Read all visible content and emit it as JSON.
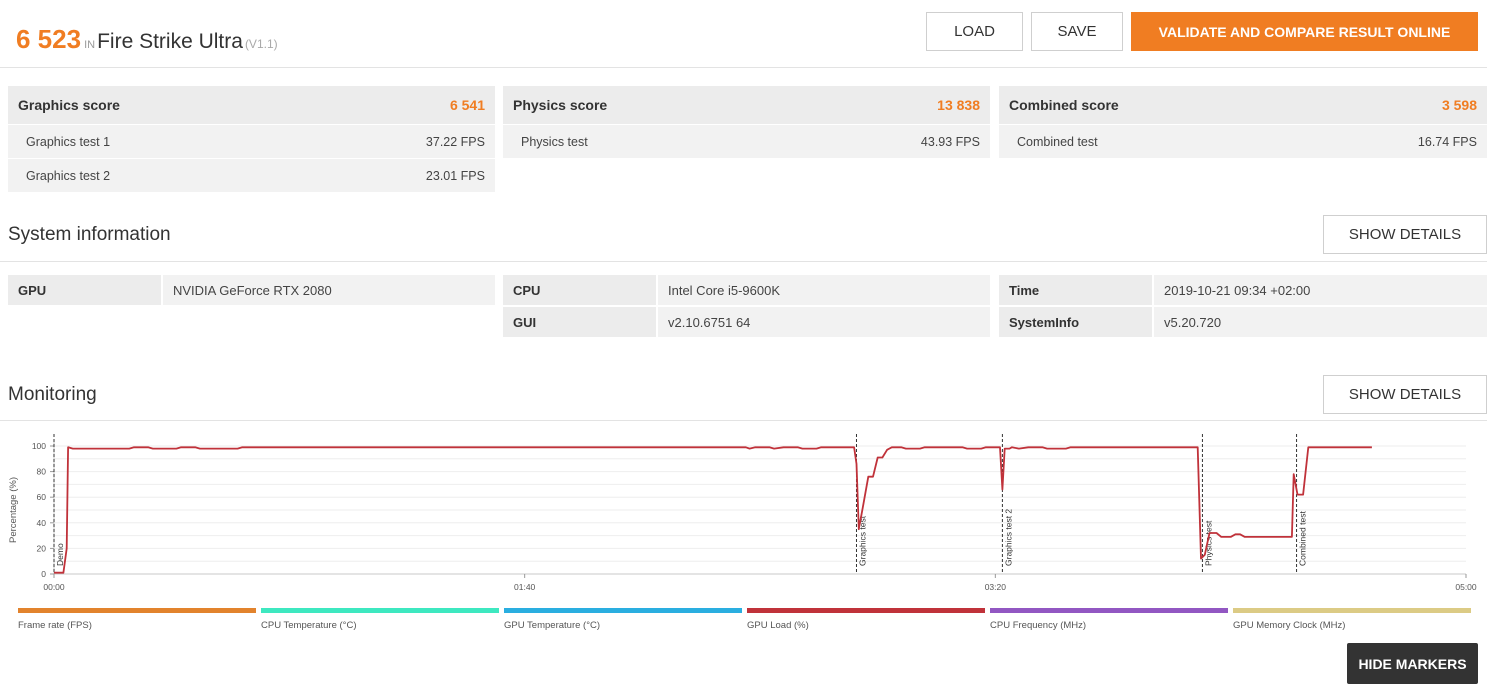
{
  "header": {
    "score": "6 523",
    "in_label": "IN",
    "test_name": "Fire Strike Ultra",
    "version": "(V1.1)",
    "load_label": "LOAD",
    "save_label": "SAVE",
    "validate_label": "VALIDATE AND COMPARE RESULT ONLINE"
  },
  "scores": [
    {
      "title": "Graphics score",
      "value": "6 541",
      "rows": [
        {
          "label": "Graphics test 1",
          "value": "37.22 FPS"
        },
        {
          "label": "Graphics test 2",
          "value": "23.01 FPS"
        }
      ]
    },
    {
      "title": "Physics score",
      "value": "13 838",
      "rows": [
        {
          "label": "Physics test",
          "value": "43.93 FPS"
        }
      ]
    },
    {
      "title": "Combined score",
      "value": "3 598",
      "rows": [
        {
          "label": "Combined test",
          "value": "16.74 FPS"
        }
      ]
    }
  ],
  "system": {
    "title": "System information",
    "details_label": "SHOW DETAILS",
    "gpu_key": "GPU",
    "gpu_val": "NVIDIA GeForce RTX 2080",
    "cpu_key": "CPU",
    "cpu_val": "Intel Core i5-9600K",
    "gui_key": "GUI",
    "gui_val": "v2.10.6751 64",
    "time_key": "Time",
    "time_val": "2019-10-21 09:34 +02:00",
    "sysinfo_key": "SystemInfo",
    "sysinfo_val": "v5.20.720"
  },
  "monitoring": {
    "title": "Monitoring",
    "details_label": "SHOW DETAILS",
    "hide_markers_label": "HIDE MARKERS",
    "legend": [
      {
        "label": "Frame rate (FPS)",
        "color": "#e2832d"
      },
      {
        "label": "CPU Temperature (°C)",
        "color": "#3ee8c0"
      },
      {
        "label": "GPU Temperature (°C)",
        "color": "#2aaee0"
      },
      {
        "label": "GPU Load (%)",
        "color": "#c0323a"
      },
      {
        "label": "CPU Frequency (MHz)",
        "color": "#9257c2"
      },
      {
        "label": "GPU Memory Clock (MHz)",
        "color": "#dccb85"
      }
    ]
  },
  "chart_data": {
    "type": "line",
    "ylabel": "Percentage (%)",
    "ylim": [
      0,
      100
    ],
    "yticks": [
      0,
      20,
      40,
      60,
      80,
      100
    ],
    "xlim_seconds": [
      0,
      300
    ],
    "xticks": [
      {
        "t": 0,
        "label": "00:00"
      },
      {
        "t": 100,
        "label": "01:40"
      },
      {
        "t": 200,
        "label": "03:20"
      },
      {
        "t": 300,
        "label": "05:00"
      }
    ],
    "markers": [
      {
        "t": 0,
        "label": "Demo"
      },
      {
        "t": 170.5,
        "label": "Graphics test"
      },
      {
        "t": 201.5,
        "label": "Graphics test 2"
      },
      {
        "t": 244,
        "label": "Physics test"
      },
      {
        "t": 264,
        "label": "Combined test"
      }
    ],
    "series": [
      {
        "name": "GPU Load (%)",
        "color": "#c0323a",
        "points": [
          [
            0,
            1
          ],
          [
            2,
            1
          ],
          [
            2.7,
            20
          ],
          [
            3,
            99
          ],
          [
            4,
            98
          ],
          [
            10,
            98
          ],
          [
            16,
            98
          ],
          [
            17,
            99
          ],
          [
            20,
            99
          ],
          [
            21,
            98
          ],
          [
            26,
            98
          ],
          [
            27,
            99
          ],
          [
            30,
            99
          ],
          [
            31,
            98
          ],
          [
            39,
            98
          ],
          [
            40,
            99
          ],
          [
            140,
            99
          ],
          [
            147,
            99
          ],
          [
            147.8,
            98
          ],
          [
            149,
            99
          ],
          [
            152,
            99
          ],
          [
            153,
            98
          ],
          [
            155,
            99
          ],
          [
            158,
            99
          ],
          [
            159,
            98
          ],
          [
            162,
            98
          ],
          [
            163,
            99
          ],
          [
            170,
            99
          ],
          [
            170.5,
            86
          ],
          [
            171,
            35
          ],
          [
            172,
            55
          ],
          [
            173,
            76
          ],
          [
            174,
            76
          ],
          [
            175,
            91
          ],
          [
            176,
            91
          ],
          [
            177,
            97
          ],
          [
            178,
            99
          ],
          [
            180,
            99
          ],
          [
            181,
            98
          ],
          [
            184,
            98
          ],
          [
            185,
            99
          ],
          [
            193,
            99
          ],
          [
            194,
            98
          ],
          [
            197,
            98
          ],
          [
            198,
            99
          ],
          [
            201,
            99
          ],
          [
            201.5,
            66
          ],
          [
            202,
            98
          ],
          [
            203,
            98
          ],
          [
            203.5,
            99
          ],
          [
            205,
            98
          ],
          [
            207,
            99
          ],
          [
            210,
            99
          ],
          [
            211,
            98
          ],
          [
            215,
            98
          ],
          [
            216,
            99
          ],
          [
            243,
            99
          ],
          [
            243.7,
            12
          ],
          [
            244.5,
            15
          ],
          [
            245.5,
            32
          ],
          [
            247,
            32
          ],
          [
            248,
            29
          ],
          [
            250,
            29
          ],
          [
            251,
            31
          ],
          [
            252,
            31
          ],
          [
            253,
            29
          ],
          [
            263,
            29
          ],
          [
            263.4,
            78
          ],
          [
            264.2,
            62
          ],
          [
            265.4,
            62
          ],
          [
            266.5,
            99
          ],
          [
            280,
            99
          ]
        ]
      }
    ]
  }
}
